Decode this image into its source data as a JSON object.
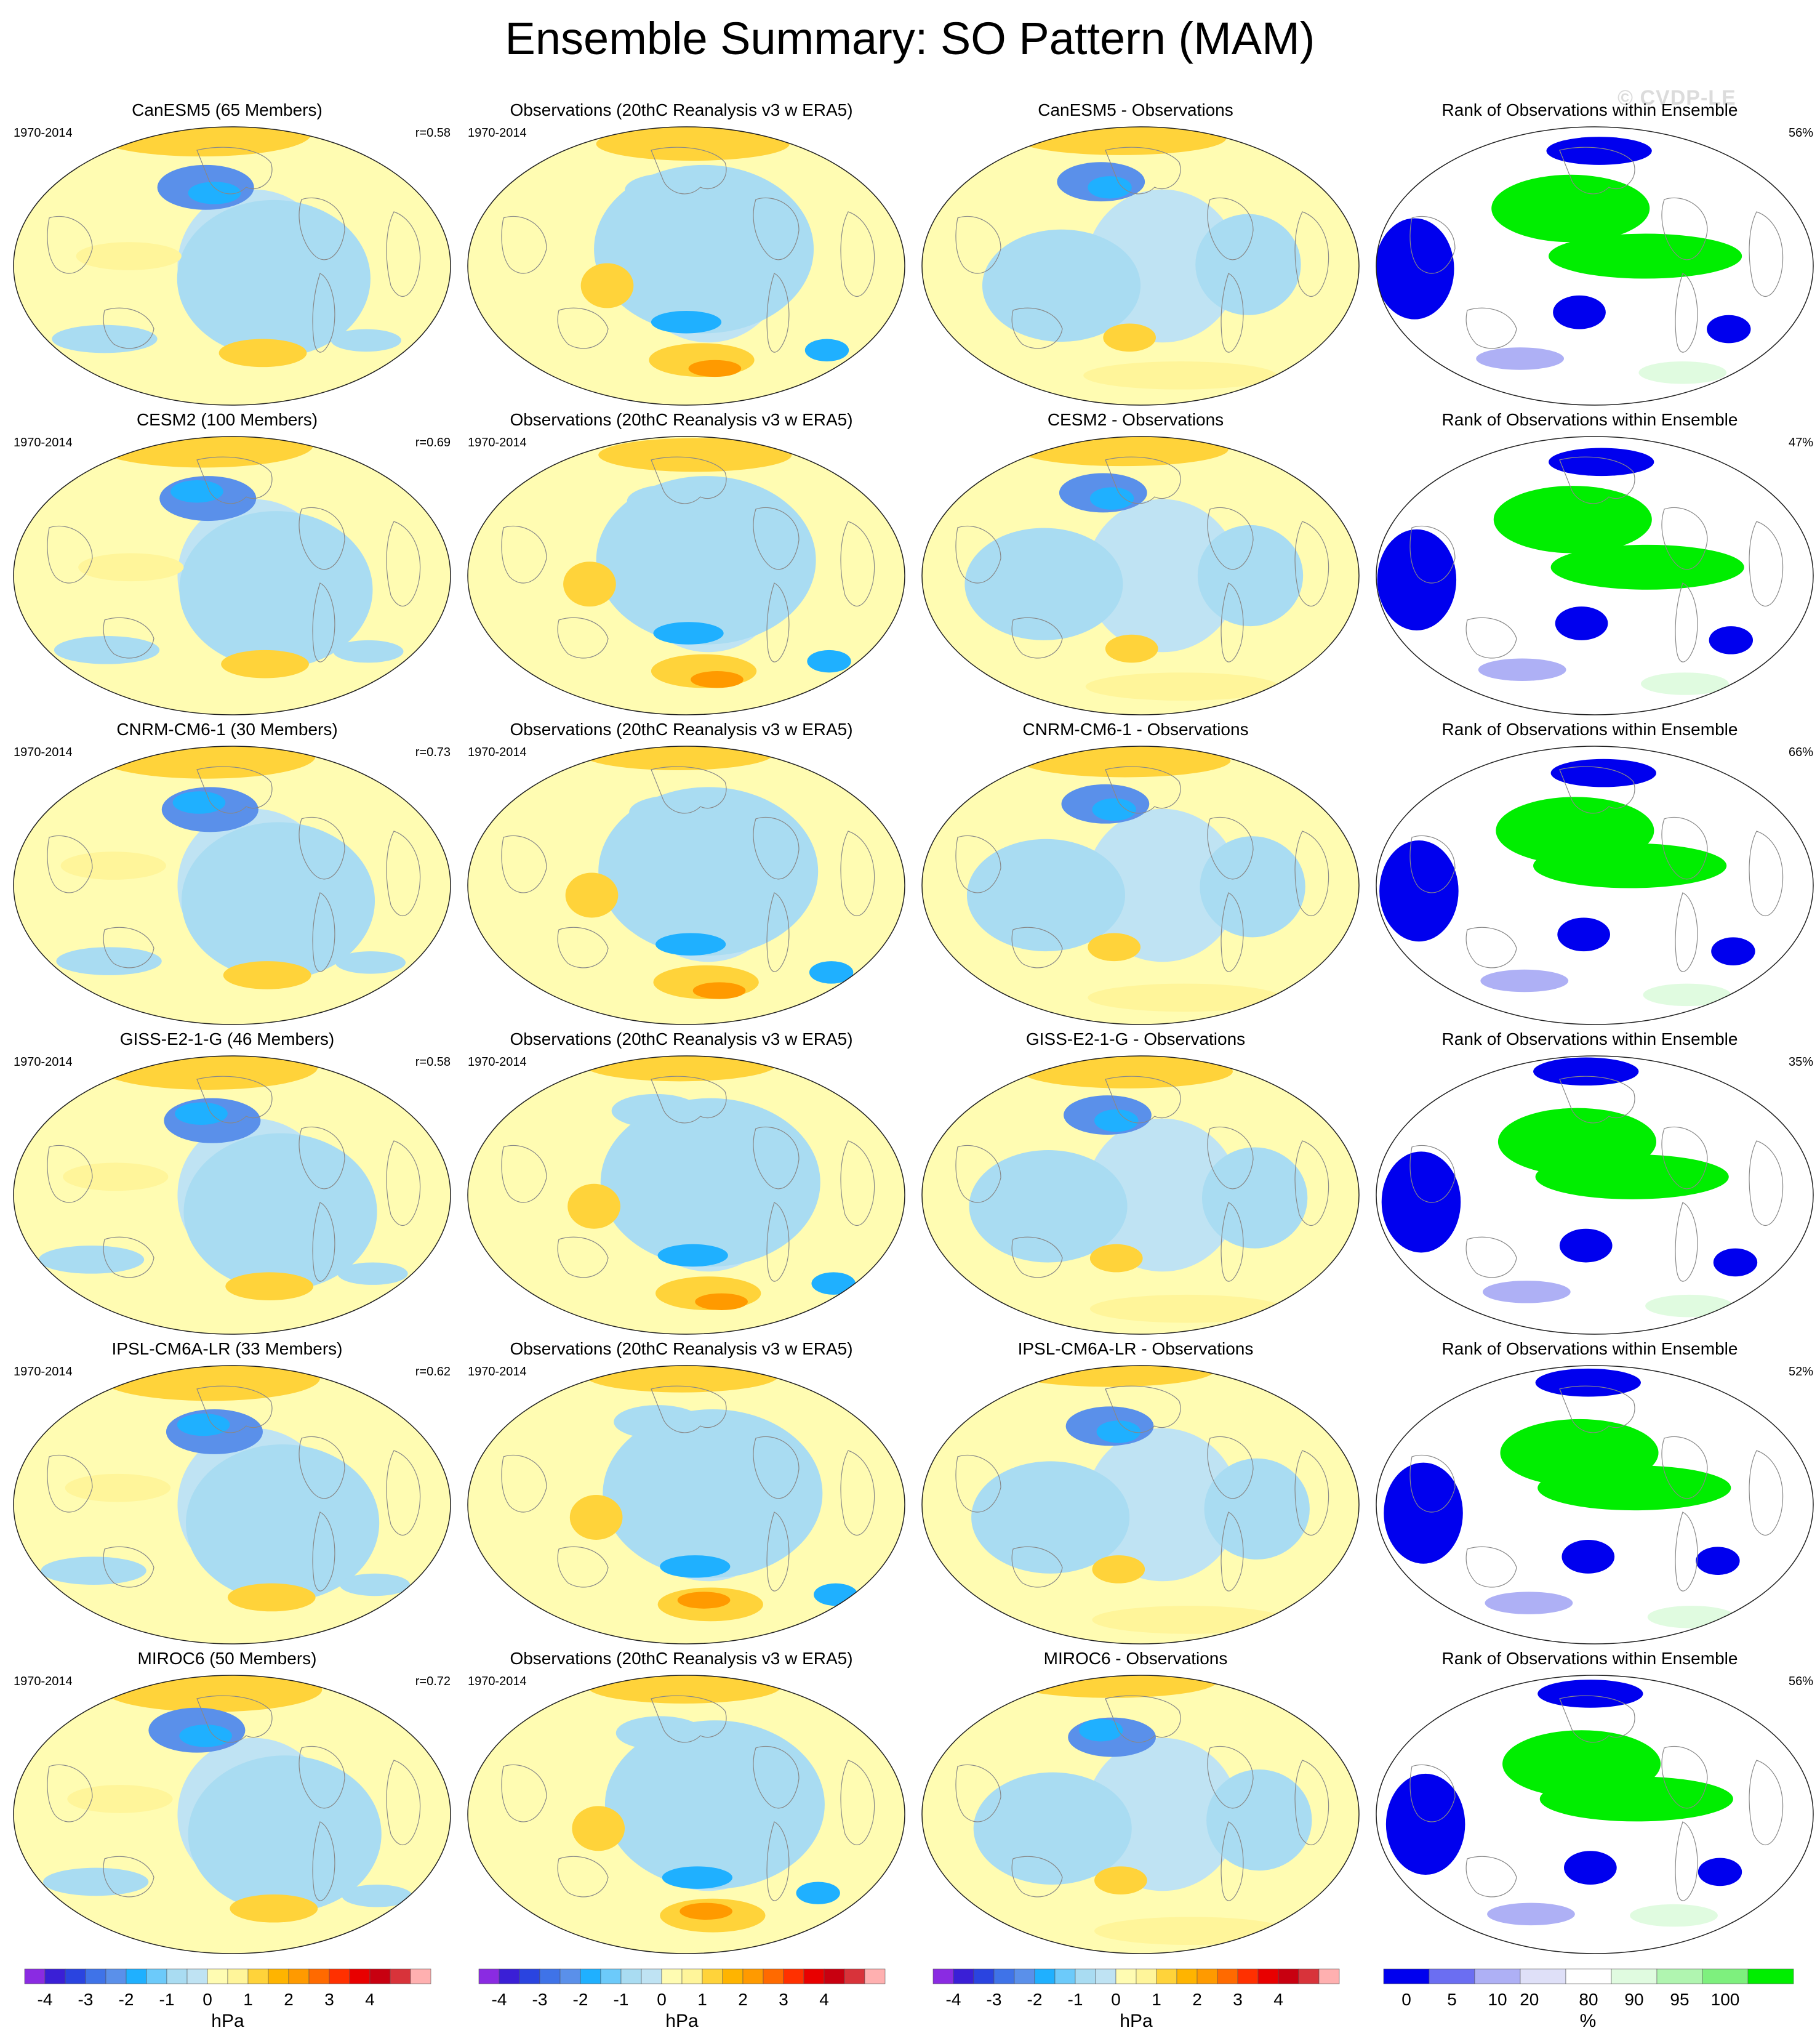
{
  "title": "Ensemble Summary: SO Pattern (MAM)",
  "watermark": "© CVDP-LE",
  "rows": [
    {
      "model": {
        "title": "CanESM5 (65 Members)",
        "period": "1970-2014",
        "corr": "r=0.58"
      },
      "obs": {
        "title": "Observations (20thC Reanalysis v3 w ERA5)",
        "period": "1970-2014"
      },
      "diff": {
        "title": "CanESM5 - Observations"
      },
      "rank": {
        "title": "Rank of Observations within Ensemble",
        "pct": "56%"
      }
    },
    {
      "model": {
        "title": "CESM2 (100 Members)",
        "period": "1970-2014",
        "corr": "r=0.69"
      },
      "obs": {
        "title": "Observations (20thC Reanalysis v3 w ERA5)",
        "period": "1970-2014"
      },
      "diff": {
        "title": "CESM2 - Observations"
      },
      "rank": {
        "title": "Rank of Observations within Ensemble",
        "pct": "47%"
      }
    },
    {
      "model": {
        "title": "CNRM-CM6-1 (30 Members)",
        "period": "1970-2014",
        "corr": "r=0.73"
      },
      "obs": {
        "title": "Observations (20thC Reanalysis v3 w ERA5)",
        "period": "1970-2014"
      },
      "diff": {
        "title": "CNRM-CM6-1 - Observations"
      },
      "rank": {
        "title": "Rank of Observations within Ensemble",
        "pct": "66%"
      }
    },
    {
      "model": {
        "title": "GISS-E2-1-G (46 Members)",
        "period": "1970-2014",
        "corr": "r=0.58"
      },
      "obs": {
        "title": "Observations (20thC Reanalysis v3 w ERA5)",
        "period": "1970-2014"
      },
      "diff": {
        "title": "GISS-E2-1-G - Observations"
      },
      "rank": {
        "title": "Rank of Observations within Ensemble",
        "pct": "35%"
      }
    },
    {
      "model": {
        "title": "IPSL-CM6A-LR (33 Members)",
        "period": "1970-2014",
        "corr": "r=0.62"
      },
      "obs": {
        "title": "Observations (20thC Reanalysis v3 w ERA5)",
        "period": "1970-2014"
      },
      "diff": {
        "title": "IPSL-CM6A-LR - Observations"
      },
      "rank": {
        "title": "Rank of Observations within Ensemble",
        "pct": "52%"
      }
    },
    {
      "model": {
        "title": "MIROC6 (50 Members)",
        "period": "1970-2014",
        "corr": "r=0.72"
      },
      "obs": {
        "title": "Observations (20thC Reanalysis v3 w ERA5)",
        "period": "1970-2014"
      },
      "diff": {
        "title": "MIROC6 - Observations"
      },
      "rank": {
        "title": "Rank of Observations within Ensemble",
        "pct": "56%"
      }
    }
  ],
  "colorbars": {
    "hpa": {
      "unit": "hPa",
      "labels": [
        "-4",
        "-3",
        "-2",
        "-1",
        "0",
        "1",
        "2",
        "3",
        "4"
      ],
      "colors": [
        "#8a2be2",
        "#3a1fd6",
        "#2a44e0",
        "#3f73e8",
        "#5a90ea",
        "#1fb0ff",
        "#6ccafa",
        "#a9dcf2",
        "#bfe3f3",
        "#fffcb2",
        "#fff59a",
        "#ffd33a",
        "#ffb400",
        "#ff9a00",
        "#ff6a00",
        "#ff3000",
        "#e80000",
        "#c80010",
        "#d8333a",
        "#ffb0b0"
      ]
    },
    "rank": {
      "unit": "%",
      "labels": [
        "0",
        "5",
        "10",
        "20",
        "80",
        "90",
        "95",
        "100"
      ],
      "colors": [
        "#0000ee",
        "#6b6ef2",
        "#aeb0f5",
        "#dfe0f8",
        "#ffffff",
        "#e0fbe0",
        "#b0f5b0",
        "#7ef07e",
        "#00ee00"
      ]
    }
  },
  "colors": {
    "ocean_pos": "#fffcb2",
    "ocean_neg": "#bfe3f3",
    "rank_low": "#0000ee",
    "rank_high": "#00ee00"
  }
}
